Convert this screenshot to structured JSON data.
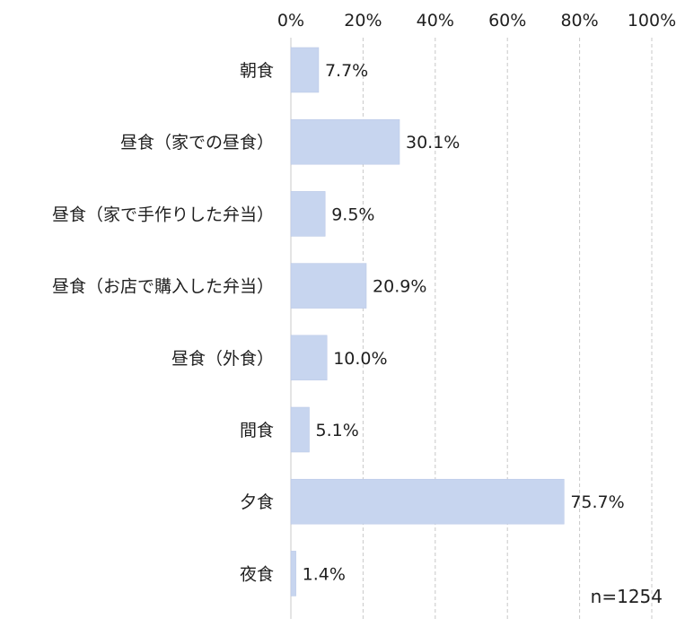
{
  "chart_data": {
    "type": "bar",
    "orientation": "horizontal",
    "categories": [
      "朝食",
      "昼食（家での昼食）",
      "昼食（家で手作りした弁当）",
      "昼食（お店で購入した弁当）",
      "昼食（外食）",
      "間食",
      "夕食",
      "夜食"
    ],
    "values": [
      7.7,
      30.1,
      9.5,
      20.9,
      10.0,
      5.1,
      75.7,
      1.4
    ],
    "value_labels": [
      "7.7%",
      "30.1%",
      "9.5%",
      "20.9%",
      "10.0%",
      "5.1%",
      "75.7%",
      "1.4%"
    ],
    "x_ticks": [
      0,
      20,
      40,
      60,
      80,
      100
    ],
    "x_tick_labels": [
      "0%",
      "20%",
      "40%",
      "60%",
      "80%",
      "100%"
    ],
    "xlim": [
      0,
      100
    ],
    "axis_position": "top",
    "grid": true,
    "grid_style": "dashed",
    "bar_color": "#c7d5ef",
    "annotation": "n=1254"
  }
}
